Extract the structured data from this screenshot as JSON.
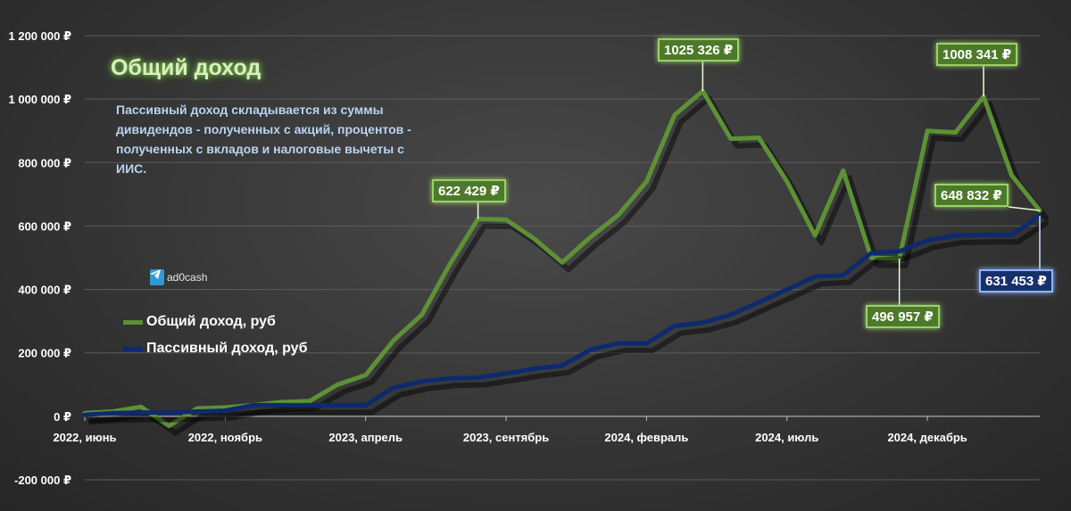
{
  "chart_data": {
    "type": "line",
    "title": "Общий доход",
    "subtitle": "Пассивный доход складывается из суммы дивидендов - полученных с акций, процентов - полученных с вкладов и налоговые вычеты с ИИС.",
    "ylim": [
      -200000,
      1200000
    ],
    "yticks": [
      "1 200 000 ₽",
      "1 000 000 ₽",
      "800 000 ₽",
      "600 000 ₽",
      "400 000 ₽",
      "200 000 ₽",
      "0 ₽",
      "-200 000 ₽"
    ],
    "ytick_values": [
      1200000,
      1000000,
      800000,
      600000,
      400000,
      200000,
      0,
      -200000
    ],
    "x": [
      "2022-06",
      "2022-07",
      "2022-08",
      "2022-09",
      "2022-10",
      "2022-11",
      "2022-12",
      "2023-01",
      "2023-02",
      "2023-03",
      "2023-04",
      "2023-05",
      "2023-06",
      "2023-07",
      "2023-08",
      "2023-09",
      "2023-10",
      "2023-11",
      "2023-12",
      "2024-01",
      "2024-02",
      "2024-03",
      "2024-04",
      "2024-05",
      "2024-06",
      "2024-07",
      "2024-08",
      "2024-09",
      "2024-10",
      "2024-11",
      "2024-12",
      "2025-01",
      "2025-02",
      "2025-03",
      "2025-04"
    ],
    "xticks": [
      {
        "label": "2022, июнь",
        "index": 0
      },
      {
        "label": "2022, ноябрь",
        "index": 5
      },
      {
        "label": "2023, апрель",
        "index": 10
      },
      {
        "label": "2023, сентябрь",
        "index": 15
      },
      {
        "label": "2024, февраль",
        "index": 20
      },
      {
        "label": "2024, июль",
        "index": 25
      },
      {
        "label": "2024, декабрь",
        "index": 30
      }
    ],
    "series": [
      {
        "name": "Общий доход, руб",
        "color": "#5d9135",
        "values": [
          10000,
          15000,
          30000,
          -30000,
          25000,
          28000,
          35000,
          45000,
          48000,
          100000,
          130000,
          240000,
          320000,
          480000,
          622429,
          620000,
          560000,
          485000,
          565000,
          635000,
          740000,
          950000,
          1025326,
          875000,
          878000,
          740000,
          570000,
          775000,
          500000,
          496957,
          900000,
          895000,
          1008341,
          760000,
          648832
        ]
      },
      {
        "name": "Пассивный доход, руб",
        "color": "#0d2a6e",
        "values": [
          5000,
          10000,
          12000,
          12000,
          15000,
          18000,
          35000,
          35000,
          35000,
          35000,
          35000,
          90000,
          110000,
          120000,
          122000,
          135000,
          150000,
          160000,
          210000,
          230000,
          230000,
          285000,
          295000,
          320000,
          360000,
          400000,
          440000,
          445000,
          515000,
          520000,
          555000,
          570000,
          572000,
          572000,
          631453
        ]
      }
    ],
    "annotations": [
      {
        "text": "622 429 ₽",
        "series": 0,
        "index": 14,
        "style": "green"
      },
      {
        "text": "1025 326 ₽",
        "series": 0,
        "index": 22,
        "style": "green"
      },
      {
        "text": "1008 341 ₽",
        "series": 0,
        "index": 32,
        "style": "green"
      },
      {
        "text": "648 832 ₽",
        "series": 0,
        "index": 34,
        "style": "green"
      },
      {
        "text": "496 957 ₽",
        "series": 0,
        "index": 29,
        "style": "green"
      },
      {
        "text": "631 453 ₽",
        "series": 1,
        "index": 34,
        "style": "blue"
      }
    ],
    "legend_position": "left-middle",
    "grid": true
  },
  "watermark": {
    "label": "ad0cash",
    "icon": "telegram-icon"
  }
}
